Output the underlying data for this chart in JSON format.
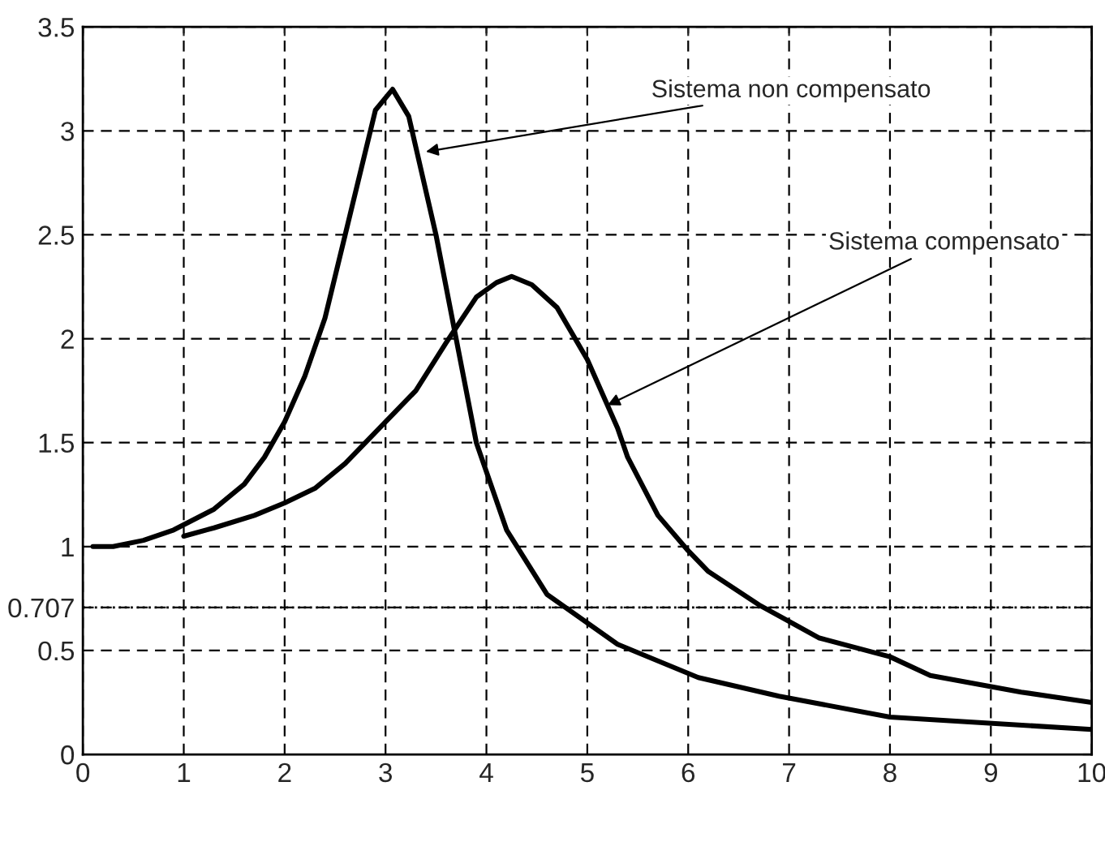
{
  "chart_data": {
    "type": "line",
    "series": [
      {
        "color": "#000000",
        "x": [
          0.1,
          0.3,
          0.6,
          0.9,
          1.3,
          1.6,
          1.8,
          2.0,
          2.2,
          2.4,
          2.6,
          2.9,
          3.07,
          3.23,
          3.5,
          3.7,
          3.9,
          4.2,
          4.6,
          5.3,
          6.1,
          6.9,
          8.0,
          10
        ],
        "values": [
          1.0,
          1.0,
          1.03,
          1.08,
          1.18,
          1.3,
          1.43,
          1.6,
          1.82,
          2.1,
          2.5,
          3.1,
          3.2,
          3.07,
          2.5,
          2.0,
          1.5,
          1.08,
          0.77,
          0.53,
          0.37,
          0.28,
          0.18,
          0.12
        ]
      },
      {
        "color": "#000000",
        "x": [
          1.0,
          1.3,
          1.7,
          2.0,
          2.3,
          2.6,
          2.9,
          3.3,
          3.6,
          3.9,
          4.1,
          4.25,
          4.45,
          4.7,
          5.0,
          5.3,
          5.4,
          5.7,
          6.0,
          6.2,
          6.7,
          7.3,
          8.0,
          8.4,
          9.3,
          10
        ],
        "values": [
          1.05,
          1.09,
          1.15,
          1.21,
          1.28,
          1.4,
          1.55,
          1.75,
          1.98,
          2.2,
          2.27,
          2.3,
          2.26,
          2.15,
          1.9,
          1.57,
          1.43,
          1.15,
          0.98,
          0.88,
          0.72,
          0.56,
          0.47,
          0.38,
          0.3,
          0.25
        ]
      }
    ],
    "xlim": [
      0,
      10
    ],
    "xticks": [
      0,
      1,
      2,
      3,
      4,
      5,
      6,
      7,
      8,
      9,
      10
    ],
    "ylim": [
      0,
      3.5
    ],
    "yticks": [
      0,
      0.5,
      0.707,
      1,
      1.5,
      2,
      2.5,
      3,
      3.5
    ],
    "grid": true,
    "line_style": "solid",
    "marker": "none",
    "ref_lines": [
      {
        "axis": "y",
        "value": 0.707,
        "color": "#000000",
        "line_style": "dotted"
      }
    ],
    "annotations": [
      {
        "text": "Sistema non compensato",
        "x": 3.4,
        "y": 2.9
      },
      {
        "text": "Sistema compensato",
        "x": 5.2,
        "y": 1.68
      }
    ]
  }
}
